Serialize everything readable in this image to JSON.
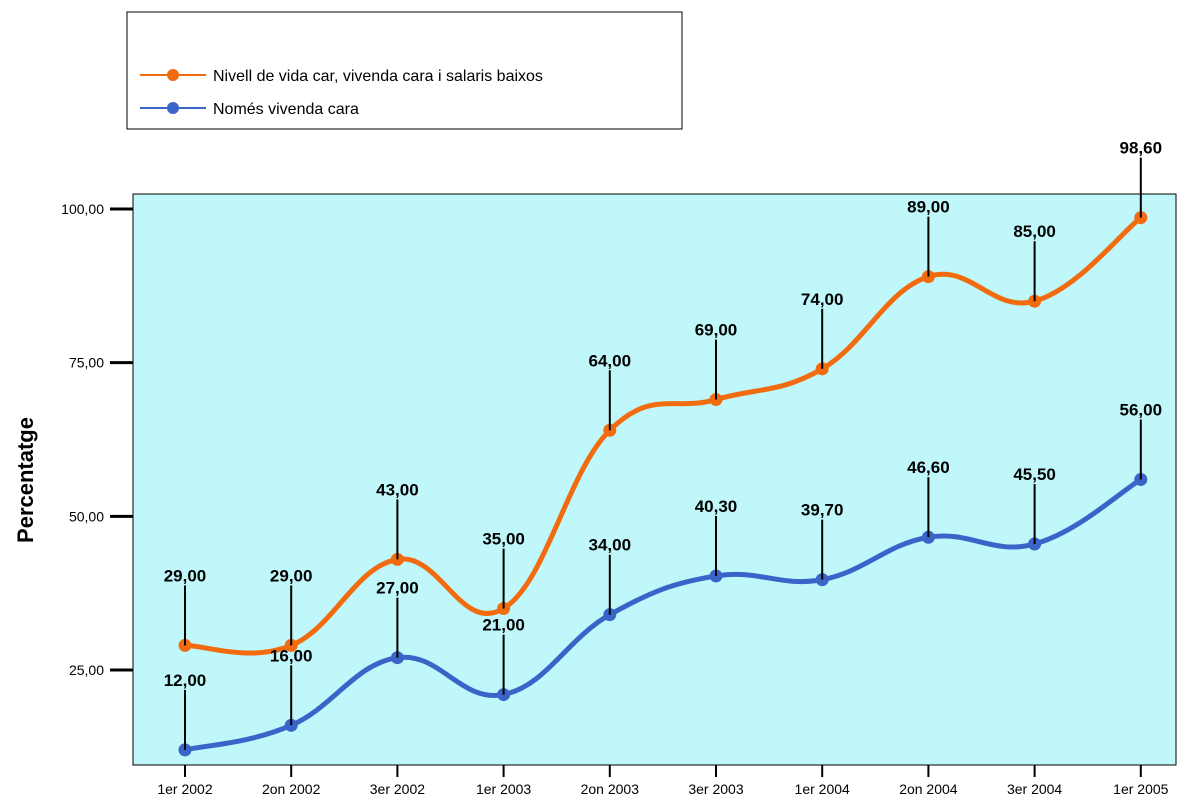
{
  "chart_data": {
    "type": "line",
    "title": "",
    "xlabel": "",
    "ylabel": "Percentatge",
    "categories": [
      "1er 2002",
      "2on 2002",
      "3er 2002",
      "1er 2003",
      "2on 2003",
      "3er 2003",
      "1er 2004",
      "2on 2004",
      "3er 2004",
      "1er 2005"
    ],
    "series": [
      {
        "name": "Nivell de vida car, vivenda cara i salaris baixos",
        "color": "#f26b0f",
        "values": [
          29.0,
          29.0,
          43.0,
          35.0,
          64.0,
          69.0,
          74.0,
          89.0,
          85.0,
          98.6
        ],
        "labels": [
          "29,00",
          "29,00",
          "43,00",
          "35,00",
          "64,00",
          "69,00",
          "74,00",
          "89,00",
          "85,00",
          "98,60"
        ]
      },
      {
        "name": "Només vivenda cara",
        "color": "#3a64c8",
        "values": [
          12.0,
          16.0,
          27.0,
          21.0,
          34.0,
          40.3,
          39.7,
          46.6,
          45.5,
          56.0
        ],
        "labels": [
          "12,00",
          "16,00",
          "27,00",
          "21,00",
          "34,00",
          "40,30",
          "39,70",
          "46,60",
          "45,50",
          "56,00"
        ]
      }
    ],
    "ylim": [
      5,
      100
    ],
    "yticks": [
      25,
      50,
      75,
      100
    ],
    "ytick_labels": [
      "25,00",
      "50,00",
      "75,00",
      "100,00"
    ],
    "plot_background": "#bff7fa",
    "grid": false,
    "legend_position": "top-left"
  }
}
